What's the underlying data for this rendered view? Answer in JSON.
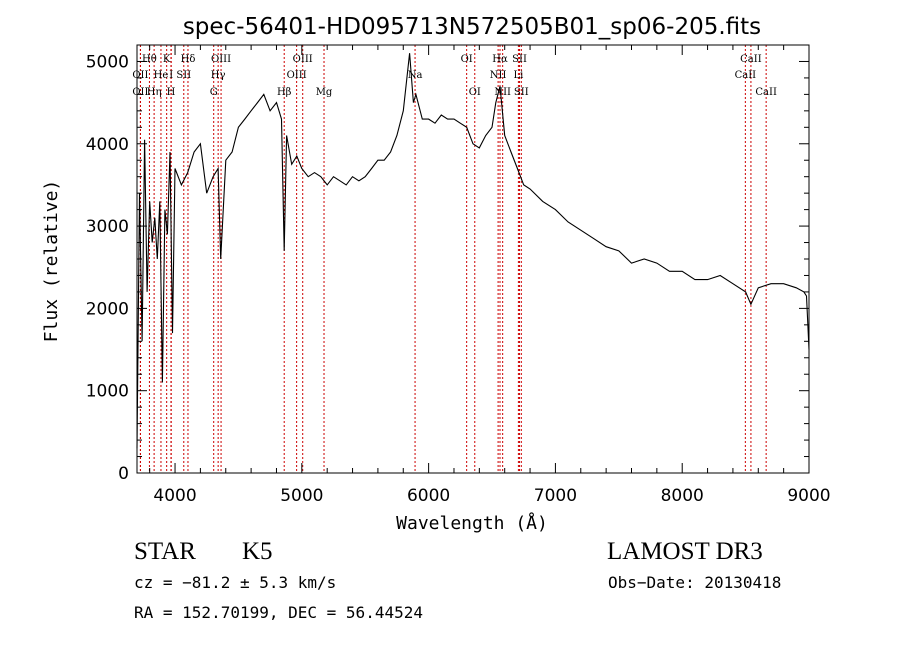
{
  "chart_data": {
    "type": "line",
    "title": "spec-56401-HD095713N572505B01_sp06-205.fits",
    "xlabel": "Wavelength (Å)",
    "ylabel": "Flux (relative)",
    "xlim": [
      3700,
      9000
    ],
    "ylim": [
      0,
      5200
    ],
    "xticks": [
      4000,
      5000,
      6000,
      7000,
      8000,
      9000
    ],
    "yticks": [
      0,
      1000,
      2000,
      3000,
      4000,
      5000
    ],
    "grid": false,
    "series": [
      {
        "x": [
          3700,
          3720,
          3740,
          3760,
          3780,
          3800,
          3820,
          3840,
          3860,
          3880,
          3900,
          3920,
          3940,
          3960,
          3980,
          4000,
          4050,
          4100,
          4150,
          4200,
          4250,
          4300,
          4340,
          4360,
          4400,
          4450,
          4500,
          4550,
          4600,
          4650,
          4700,
          4750,
          4800,
          4840,
          4861,
          4880,
          4920,
          4960,
          5000,
          5050,
          5100,
          5150,
          5200,
          5250,
          5300,
          5350,
          5400,
          5450,
          5500,
          5550,
          5600,
          5650,
          5700,
          5750,
          5800,
          5850,
          5880,
          5900,
          5950,
          6000,
          6050,
          6100,
          6150,
          6200,
          6250,
          6300,
          6350,
          6400,
          6450,
          6500,
          6530,
          6563,
          6600,
          6650,
          6700,
          6750,
          6800,
          6900,
          7000,
          7100,
          7200,
          7300,
          7400,
          7500,
          7600,
          7700,
          7800,
          7900,
          8000,
          8100,
          8200,
          8300,
          8400,
          8500,
          8542,
          8600,
          8700,
          8800,
          8900,
          8960,
          8980,
          9000
        ],
        "y": [
          300,
          3400,
          1600,
          4050,
          2200,
          3300,
          2800,
          3100,
          2600,
          3300,
          1100,
          3200,
          2900,
          3900,
          1700,
          3700,
          3500,
          3650,
          3900,
          4000,
          3400,
          3600,
          3700,
          2600,
          3800,
          3900,
          4200,
          4300,
          4400,
          4500,
          4600,
          4400,
          4500,
          4300,
          2700,
          4100,
          3750,
          3850,
          3700,
          3600,
          3650,
          3600,
          3500,
          3600,
          3550,
          3500,
          3600,
          3550,
          3600,
          3700,
          3800,
          3800,
          3900,
          4100,
          4400,
          5100,
          4500,
          4600,
          4300,
          4300,
          4250,
          4350,
          4300,
          4300,
          4250,
          4200,
          4000,
          3950,
          4100,
          4200,
          4500,
          4700,
          4100,
          3900,
          3700,
          3500,
          3450,
          3300,
          3200,
          3050,
          2950,
          2850,
          2750,
          2700,
          2550,
          2600,
          2550,
          2450,
          2450,
          2350,
          2350,
          2400,
          2300,
          2200,
          2050,
          2250,
          2300,
          2300,
          2250,
          2200,
          2150,
          1500
        ]
      }
    ],
    "lines": [
      {
        "label": "Hθ",
        "x": 3798,
        "row": 0
      },
      {
        "label": "K",
        "x": 3934,
        "row": 0
      },
      {
        "label": "Hδ",
        "x": 4102,
        "row": 0
      },
      {
        "label": "OIII",
        "x": 4363,
        "row": 0
      },
      {
        "label": "OIII",
        "x": 5007,
        "row": 0
      },
      {
        "label": "OI",
        "x": 6300,
        "row": 0
      },
      {
        "label": "Hα",
        "x": 6563,
        "row": 0
      },
      {
        "label": "SII",
        "x": 6717,
        "row": 0
      },
      {
        "label": "CaII",
        "x": 8542,
        "row": 0
      },
      {
        "label": "OII",
        "x": 3727,
        "row": 1
      },
      {
        "label": "He",
        "x": 3889,
        "row": 1
      },
      {
        "label": "I",
        "x": 3970,
        "row": 1
      },
      {
        "label": "SII",
        "x": 4069,
        "row": 1
      },
      {
        "label": "Hγ",
        "x": 4340,
        "row": 1
      },
      {
        "label": "OIII",
        "x": 4959,
        "row": 1
      },
      {
        "label": "Na",
        "x": 5893,
        "row": 1
      },
      {
        "label": "NII",
        "x": 6548,
        "row": 1
      },
      {
        "label": "Li",
        "x": 6708,
        "row": 1
      },
      {
        "label": "CaII",
        "x": 8498,
        "row": 1
      },
      {
        "label": "OII",
        "x": 3727,
        "row": 2
      },
      {
        "label": "Hη",
        "x": 3835,
        "row": 2
      },
      {
        "label": "H",
        "x": 3968,
        "row": 2
      },
      {
        "label": "G",
        "x": 4305,
        "row": 2
      },
      {
        "label": "Hβ",
        "x": 4861,
        "row": 2
      },
      {
        "label": "Mg",
        "x": 5175,
        "row": 2
      },
      {
        "label": "OI",
        "x": 6364,
        "row": 2
      },
      {
        "label": "NII",
        "x": 6584,
        "row": 2
      },
      {
        "label": "SII",
        "x": 6731,
        "row": 2
      },
      {
        "label": "CaII",
        "x": 8662,
        "row": 2
      }
    ],
    "line_color": "#cc0000"
  },
  "info": {
    "object_class": "STAR",
    "subclass": "K5",
    "survey": "LAMOST DR3",
    "cz": "cz = −81.2 ± 5.3 km/s",
    "obs_date": "Obs−Date: 20130418",
    "radec": "RA = 152.70199, DEC =  56.44524"
  }
}
